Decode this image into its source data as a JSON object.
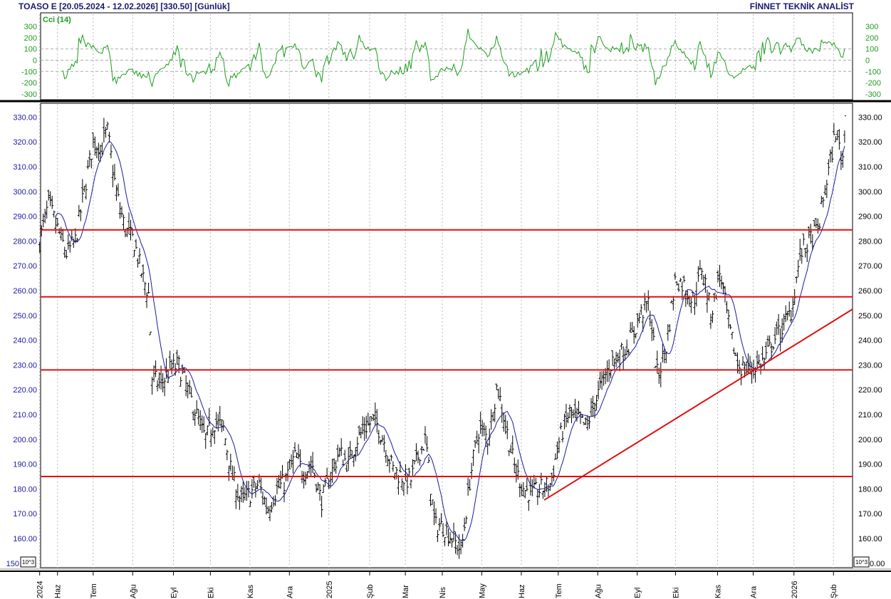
{
  "header": {
    "title": "TOASO E  [20.05.2024 - 12.02.2026]  [330.50]  [Günlük]",
    "brand": "FİNNET TEKNİK ANALİST"
  },
  "chart_data": [
    {
      "type": "line",
      "title": "Cci (14)",
      "ylim": [
        -350,
        350
      ],
      "yticks": [
        300,
        200,
        100,
        0,
        -100,
        -200,
        -300
      ],
      "color": "#1a9e1a",
      "dashed_levels": [
        100,
        -100
      ]
    },
    {
      "type": "ohlc",
      "ylim": [
        150,
        335
      ],
      "yticks": [
        330,
        320,
        310,
        300,
        290,
        280,
        270,
        260,
        250,
        240,
        230,
        220,
        210,
        200,
        190,
        180,
        170,
        160,
        150
      ],
      "ytick_label_format": "2 decimals",
      "multiplier_label": "10^3",
      "last_close": 330.5,
      "bar_color": "#000000",
      "moving_average_color": "#1a1aa0",
      "xticks": [
        {
          "date": "2024-05-20",
          "label": "2024"
        },
        {
          "date": "2024-06-03",
          "label": "Haz"
        },
        {
          "date": "2024-07-01",
          "label": "Tem"
        },
        {
          "date": "2024-08-01",
          "label": "Ağu"
        },
        {
          "date": "2024-09-02",
          "label": "Eyl"
        },
        {
          "date": "2024-10-01",
          "label": "Eki"
        },
        {
          "date": "2024-11-01",
          "label": "Kas"
        },
        {
          "date": "2024-12-02",
          "label": "Ara"
        },
        {
          "date": "2025-01-02",
          "label": "2025"
        },
        {
          "date": "2025-02-03",
          "label": "Şub"
        },
        {
          "date": "2025-03-03",
          "label": "Mar"
        },
        {
          "date": "2025-04-01",
          "label": "Nis"
        },
        {
          "date": "2025-05-02",
          "label": "May"
        },
        {
          "date": "2025-06-02",
          "label": "Haz"
        },
        {
          "date": "2025-07-01",
          "label": "Tem"
        },
        {
          "date": "2025-08-01",
          "label": "Ağu"
        },
        {
          "date": "2025-09-01",
          "label": "Eyl"
        },
        {
          "date": "2025-10-01",
          "label": "Eki"
        },
        {
          "date": "2025-11-03",
          "label": "Kas"
        },
        {
          "date": "2025-12-01",
          "label": "Ara"
        },
        {
          "date": "2026-01-02",
          "label": "2026"
        },
        {
          "date": "2026-02-02",
          "label": "Şub"
        }
      ],
      "horizontal_lines": [
        284.5,
        257.5,
        228,
        185
      ],
      "trendline": {
        "from": {
          "date": "2025-06-20",
          "price": 175.5
        },
        "to": {
          "date": "2026-02-25",
          "price": 252.5
        }
      },
      "line_color": "#e01010",
      "closes": [
        [
          "2024-05-20",
          280
        ],
        [
          "2024-05-27",
          295
        ],
        [
          "2024-06-03",
          285
        ],
        [
          "2024-06-10",
          275
        ],
        [
          "2024-06-17",
          280
        ],
        [
          "2024-06-24",
          300
        ],
        [
          "2024-07-01",
          320
        ],
        [
          "2024-07-08",
          318
        ],
        [
          "2024-07-12",
          325
        ],
        [
          "2024-07-19",
          300
        ],
        [
          "2024-07-26",
          285
        ],
        [
          "2024-08-02",
          280
        ],
        [
          "2024-08-09",
          265
        ],
        [
          "2024-08-14",
          258
        ],
        [
          "2024-08-16",
          225
        ],
        [
          "2024-08-23",
          222
        ],
        [
          "2024-08-30",
          228
        ],
        [
          "2024-09-06",
          230
        ],
        [
          "2024-09-13",
          220
        ],
        [
          "2024-09-20",
          210
        ],
        [
          "2024-09-27",
          200
        ],
        [
          "2024-10-04",
          207
        ],
        [
          "2024-10-11",
          205
        ],
        [
          "2024-10-18",
          185
        ],
        [
          "2024-10-25",
          175
        ],
        [
          "2024-11-01",
          178
        ],
        [
          "2024-11-08",
          182
        ],
        [
          "2024-11-15",
          172
        ],
        [
          "2024-11-22",
          180
        ],
        [
          "2024-11-29",
          183
        ],
        [
          "2024-12-06",
          193
        ],
        [
          "2024-12-13",
          187
        ],
        [
          "2024-12-20",
          190
        ],
        [
          "2024-12-27",
          175
        ],
        [
          "2025-01-03",
          185
        ],
        [
          "2025-01-10",
          195
        ],
        [
          "2025-01-17",
          190
        ],
        [
          "2025-01-24",
          200
        ],
        [
          "2025-01-31",
          205
        ],
        [
          "2025-02-07",
          208
        ],
        [
          "2025-02-14",
          200
        ],
        [
          "2025-02-21",
          188
        ],
        [
          "2025-02-28",
          185
        ],
        [
          "2025-03-07",
          183
        ],
        [
          "2025-03-14",
          195
        ],
        [
          "2025-03-19",
          200
        ],
        [
          "2025-03-26",
          165
        ],
        [
          "2025-04-02",
          165
        ],
        [
          "2025-04-09",
          160
        ],
        [
          "2025-04-16",
          155
        ],
        [
          "2025-04-23",
          185
        ],
        [
          "2025-04-30",
          205
        ],
        [
          "2025-05-07",
          200
        ],
        [
          "2025-05-14",
          222
        ],
        [
          "2025-05-21",
          205
        ],
        [
          "2025-05-28",
          188
        ],
        [
          "2025-06-04",
          180
        ],
        [
          "2025-06-11",
          178
        ],
        [
          "2025-06-18",
          180
        ],
        [
          "2025-06-25",
          182
        ],
        [
          "2025-07-02",
          200
        ],
        [
          "2025-07-09",
          210
        ],
        [
          "2025-07-16",
          208
        ],
        [
          "2025-07-23",
          205
        ],
        [
          "2025-07-30",
          215
        ],
        [
          "2025-08-06",
          225
        ],
        [
          "2025-08-13",
          232
        ],
        [
          "2025-08-20",
          235
        ],
        [
          "2025-08-27",
          240
        ],
        [
          "2025-09-03",
          250
        ],
        [
          "2025-09-10",
          255
        ],
        [
          "2025-09-17",
          225
        ],
        [
          "2025-09-24",
          238
        ],
        [
          "2025-10-01",
          265
        ],
        [
          "2025-10-08",
          262
        ],
        [
          "2025-10-15",
          255
        ],
        [
          "2025-10-22",
          270
        ],
        [
          "2025-10-29",
          250
        ],
        [
          "2025-11-05",
          268
        ],
        [
          "2025-11-12",
          245
        ],
        [
          "2025-11-19",
          230
        ],
        [
          "2025-11-26",
          228
        ],
        [
          "2025-12-03",
          230
        ],
        [
          "2025-12-10",
          232
        ],
        [
          "2025-12-17",
          240
        ],
        [
          "2025-12-24",
          245
        ],
        [
          "2025-12-31",
          252
        ],
        [
          "2026-01-07",
          275
        ],
        [
          "2026-01-14",
          280
        ],
        [
          "2026-01-21",
          285
        ],
        [
          "2026-01-28",
          305
        ],
        [
          "2026-02-04",
          325
        ],
        [
          "2026-02-09",
          312
        ],
        [
          "2026-02-12",
          330.5
        ]
      ]
    }
  ]
}
